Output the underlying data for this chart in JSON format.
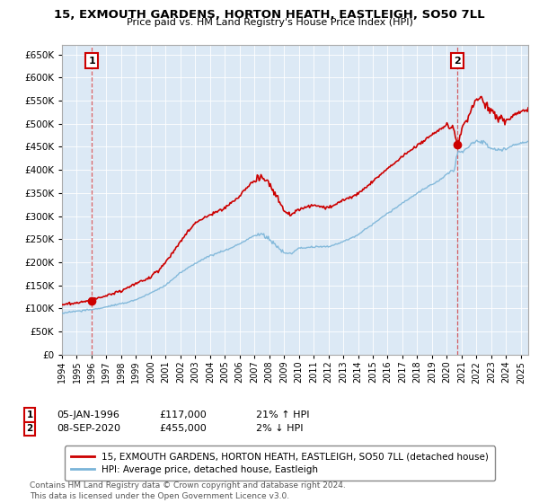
{
  "title": "15, EXMOUTH GARDENS, HORTON HEATH, EASTLEIGH, SO50 7LL",
  "subtitle": "Price paid vs. HM Land Registry's House Price Index (HPI)",
  "ylim": [
    0,
    670000
  ],
  "yticks": [
    0,
    50000,
    100000,
    150000,
    200000,
    250000,
    300000,
    350000,
    400000,
    450000,
    500000,
    550000,
    600000,
    650000
  ],
  "xlim_start": 1994.0,
  "xlim_end": 2025.5,
  "sale1_x": 1996.02,
  "sale1_y": 117000,
  "sale1_label": "1",
  "sale2_x": 2020.69,
  "sale2_y": 455000,
  "sale2_label": "2",
  "hpi_color": "#7ab4d8",
  "price_color": "#cc0000",
  "sale_marker_color": "#cc0000",
  "vline_color": "#cc0000",
  "grid_color": "#cccccc",
  "bg_color": "#dce9f5",
  "legend_line1": "15, EXMOUTH GARDENS, HORTON HEATH, EASTLEIGH, SO50 7LL (detached house)",
  "legend_line2": "HPI: Average price, detached house, Eastleigh",
  "note1_label": "1",
  "note1_date": "05-JAN-1996",
  "note1_price": "£117,000",
  "note1_hpi": "21% ↑ HPI",
  "note2_label": "2",
  "note2_date": "08-SEP-2020",
  "note2_price": "£455,000",
  "note2_hpi": "2% ↓ HPI",
  "footer": "Contains HM Land Registry data © Crown copyright and database right 2024.\nThis data is licensed under the Open Government Licence v3.0."
}
